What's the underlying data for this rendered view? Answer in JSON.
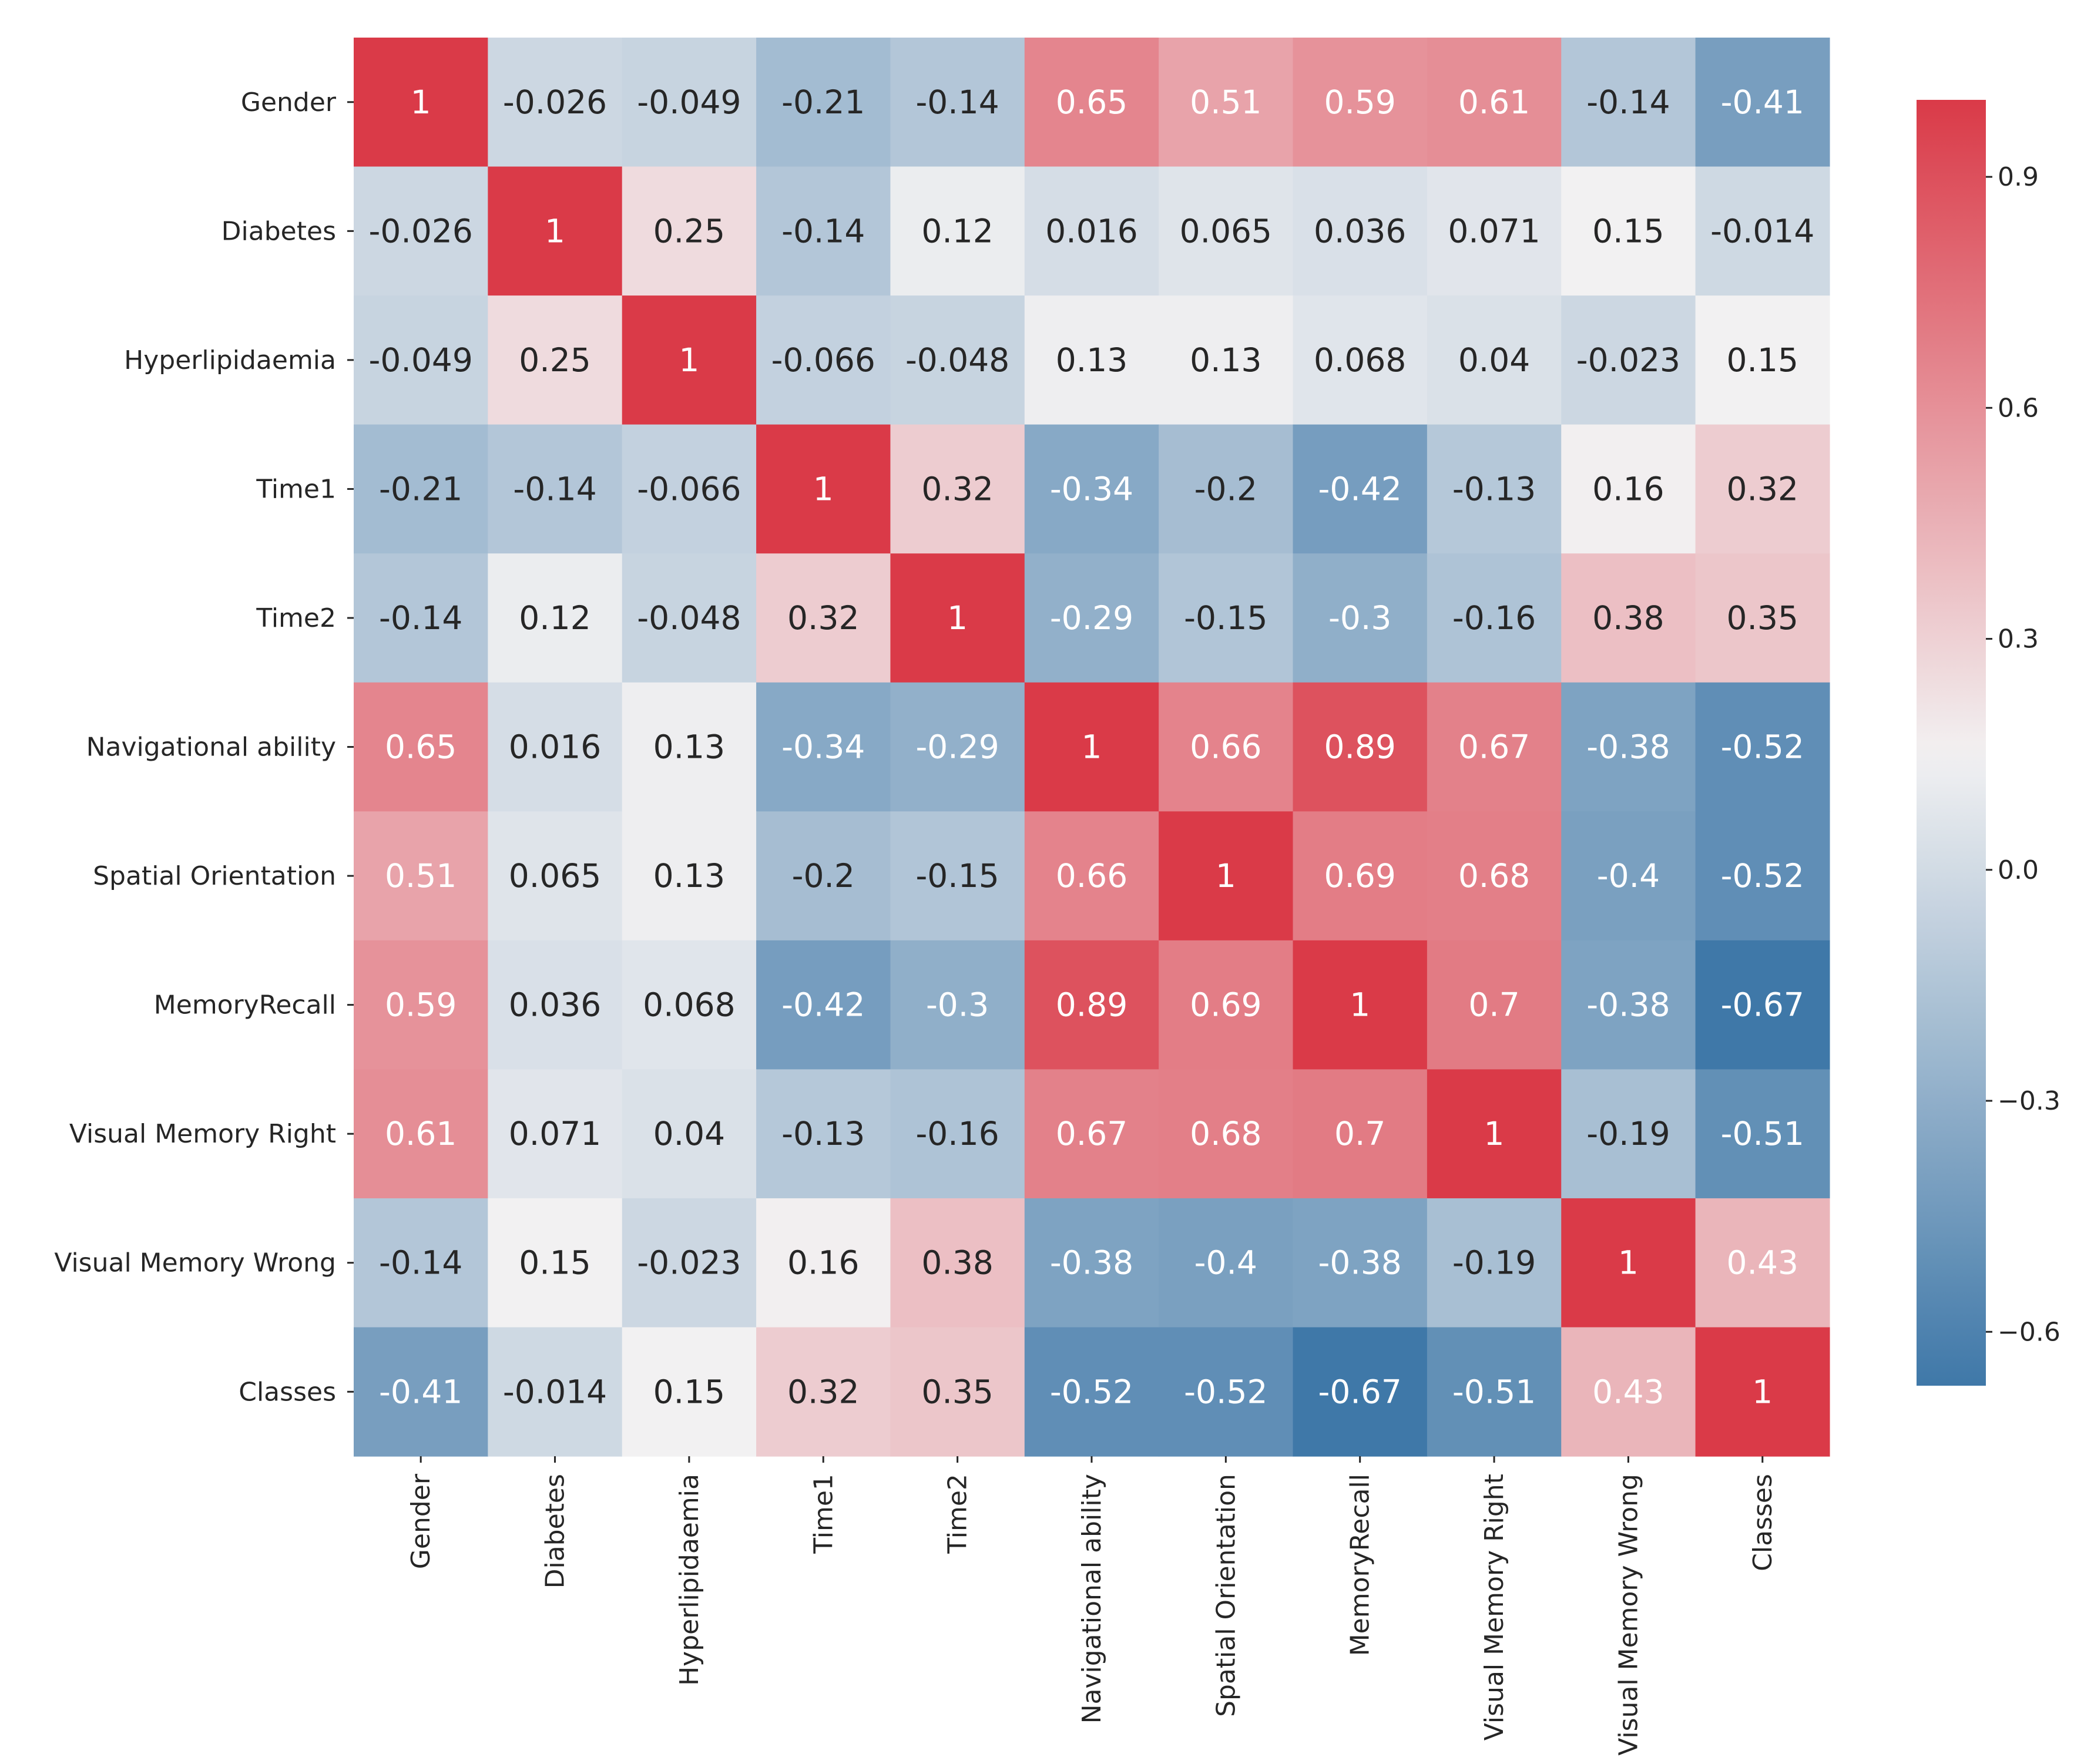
{
  "chart_data": {
    "type": "heatmap",
    "title": "",
    "labels": [
      "Gender",
      "Diabetes",
      "Hyperlipidaemia",
      "Time1",
      "Time2",
      "Navigational ability",
      "Spatial Orientation",
      "MemoryRecall",
      "Visual Memory Right",
      "Visual Memory Wrong",
      "Classes"
    ],
    "annotations": [
      [
        "1",
        "-0.026",
        "-0.049",
        "-0.21",
        "-0.14",
        "0.65",
        "0.51",
        "0.59",
        "0.61",
        "-0.14",
        "-0.41"
      ],
      [
        "-0.026",
        "1",
        "0.25",
        "-0.14",
        "0.12",
        "0.016",
        "0.065",
        "0.036",
        "0.071",
        "0.15",
        "-0.014"
      ],
      [
        "-0.049",
        "0.25",
        "1",
        "-0.066",
        "-0.048",
        "0.13",
        "0.13",
        "0.068",
        "0.04",
        "-0.023",
        "0.15"
      ],
      [
        "-0.21",
        "-0.14",
        "-0.066",
        "1",
        "0.32",
        "-0.34",
        "-0.2",
        "-0.42",
        "-0.13",
        "0.16",
        "0.32"
      ],
      [
        "-0.14",
        "0.12",
        "-0.048",
        "0.32",
        "1",
        "-0.29",
        "-0.15",
        "-0.3",
        "-0.16",
        "0.38",
        "0.35"
      ],
      [
        "0.65",
        "0.016",
        "0.13",
        "-0.34",
        "-0.29",
        "1",
        "0.66",
        "0.89",
        "0.67",
        "-0.38",
        "-0.52"
      ],
      [
        "0.51",
        "0.065",
        "0.13",
        "-0.2",
        "-0.15",
        "0.66",
        "1",
        "0.69",
        "0.68",
        "-0.4",
        "-0.52"
      ],
      [
        "0.59",
        "0.036",
        "0.068",
        "-0.42",
        "-0.3",
        "0.89",
        "0.69",
        "1",
        "0.7",
        "-0.38",
        "-0.67"
      ],
      [
        "0.61",
        "0.071",
        "0.04",
        "-0.13",
        "-0.16",
        "0.67",
        "0.68",
        "0.7",
        "1",
        "-0.19",
        "-0.51"
      ],
      [
        "-0.14",
        "0.15",
        "-0.023",
        "0.16",
        "0.38",
        "-0.38",
        "-0.4",
        "-0.38",
        "-0.19",
        "1",
        "0.43"
      ],
      [
        "-0.41",
        "-0.014",
        "0.15",
        "0.32",
        "0.35",
        "-0.52",
        "-0.52",
        "-0.67",
        "-0.51",
        "0.43",
        "1"
      ]
    ],
    "vmin": -0.67,
    "vmax": 1.0,
    "colorbar": {
      "ticks": [
        0.9,
        0.6,
        0.3,
        0.0,
        -0.3,
        -0.6
      ],
      "tick_labels": [
        "0.9",
        "0.6",
        "0.3",
        "0.0",
        "−0.3",
        "−0.6"
      ]
    },
    "colormap": {
      "low": "#3F78A8",
      "mid": "#F2F1F2",
      "high": "#DA3A48",
      "mid_value": 0.15
    },
    "annot_colors": {
      "dark": "#262626",
      "light": "#FFFFFF"
    },
    "xlabel": "",
    "ylabel": ""
  }
}
